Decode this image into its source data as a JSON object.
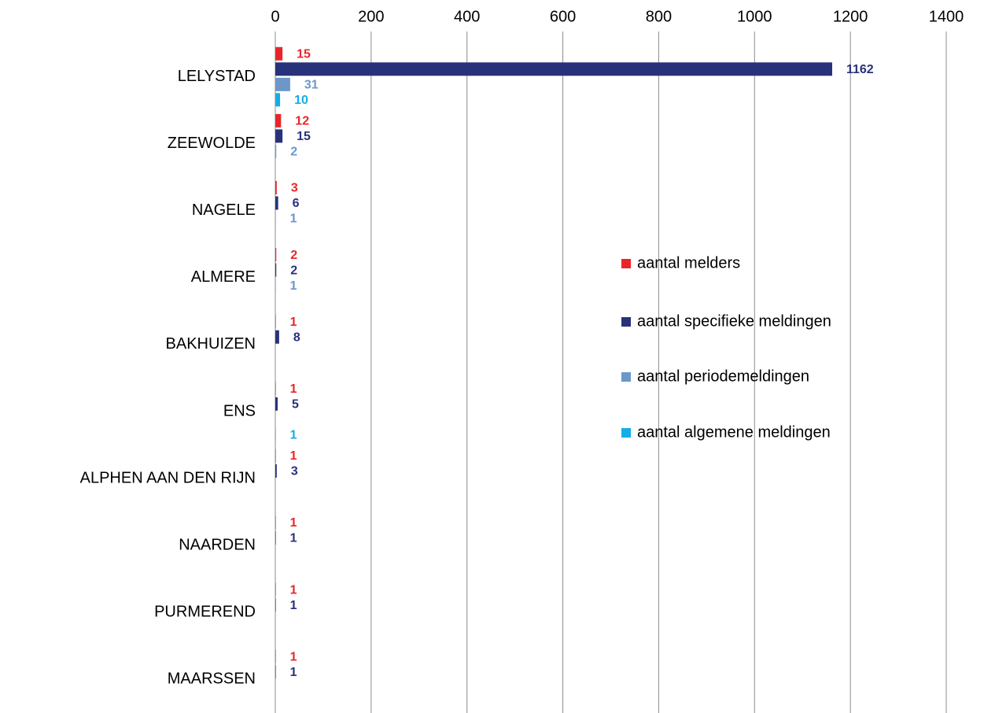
{
  "chart_data": {
    "type": "barh",
    "categories": [
      "LELYSTAD",
      "ZEEWOLDE",
      "NAGELE",
      "ALMERE",
      "BAKHUIZEN",
      "ENS",
      "ALPHEN AAN DEN RIJN",
      "NAARDEN",
      "PURMEREND",
      "MAARSSEN"
    ],
    "series": [
      {
        "name": "aantal melders",
        "color": "#e8262a",
        "values": [
          15,
          12,
          3,
          2,
          1,
          1,
          1,
          1,
          1,
          1
        ]
      },
      {
        "name": "aantal specifieke meldingen",
        "color": "#28327a",
        "values": [
          1162,
          15,
          6,
          2,
          8,
          5,
          3,
          1,
          1,
          1
        ]
      },
      {
        "name": "aantal periodemeldingen",
        "color": "#6b97c9",
        "values": [
          31,
          2,
          1,
          1,
          null,
          null,
          null,
          null,
          null,
          null
        ]
      },
      {
        "name": "aantal algemene meldingen",
        "color": "#14aee6",
        "values": [
          10,
          null,
          null,
          null,
          null,
          1,
          null,
          null,
          null,
          null
        ]
      }
    ],
    "xlim": [
      0,
      1400
    ],
    "xticks": [
      0,
      200,
      400,
      600,
      800,
      1000,
      1200,
      1400
    ],
    "grid": true,
    "legend": "right"
  }
}
